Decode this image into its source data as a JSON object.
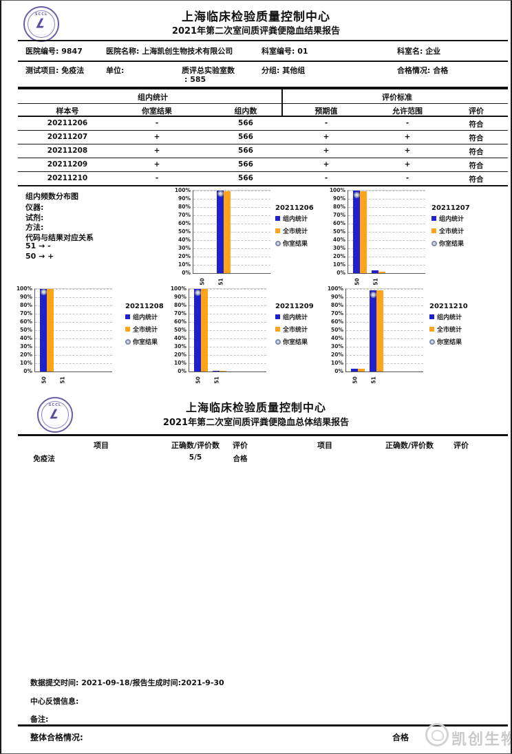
{
  "seal": {
    "text": "SCCL"
  },
  "report1": {
    "title": "上海临床检验质量控制中心",
    "subtitle": "2021年第二次室间质评粪便隐血结果报告",
    "info_row1": [
      {
        "label": "医院编号:",
        "value": "9847"
      },
      {
        "label": "医院名称:",
        "value": "上海凯创生物技术有限公司"
      },
      {
        "label": "科室编号:",
        "value": "01"
      },
      {
        "label": "科室名:",
        "value": "企业"
      }
    ],
    "info_row2": [
      {
        "label": "测试项目:",
        "value": "免疫法",
        "wrap": false
      },
      {
        "label": "单位:",
        "value": "",
        "wrap": false
      },
      {
        "label": "质评总实验室数",
        "value": ": 585",
        "wrap": true
      },
      {
        "label": "分组:",
        "value": "其他组",
        "wrap": false
      },
      {
        "label": "合格情况:",
        "value": "合格",
        "wrap": false
      }
    ],
    "result_table": {
      "group_headers": [
        "组内统计",
        "评价标准"
      ],
      "columns": [
        "样本号",
        "你室结果",
        "组内数",
        "预期值",
        "允许范围",
        "评价"
      ],
      "rows": [
        [
          "20211206",
          "-",
          "566",
          "-",
          "-",
          "符合"
        ],
        [
          "20211207",
          "+",
          "566",
          "+",
          "+",
          "符合"
        ],
        [
          "20211208",
          "+",
          "566",
          "+",
          "+",
          "符合"
        ],
        [
          "20211209",
          "+",
          "566",
          "+",
          "+",
          "符合"
        ],
        [
          "20211210",
          "-",
          "566",
          "-",
          "-",
          "符合"
        ]
      ]
    },
    "chart_notes": {
      "title": "组内频数分布图",
      "lines": [
        "仪器:",
        "试剂:",
        "方法:",
        "代码与结果对应关系",
        "51 → -",
        "50 → +"
      ]
    }
  },
  "chart_data": [
    {
      "type": "bar",
      "title": "20211206",
      "categories": [
        "50",
        "51"
      ],
      "series": [
        {
          "name": "组内统计",
          "color": "#2020CC",
          "values": [
            0,
            100
          ]
        },
        {
          "name": "全市统计",
          "color": "#FFA31A",
          "values": [
            0,
            99
          ]
        }
      ],
      "your_result": {
        "name": "你室结果",
        "category": "51",
        "value": 97
      },
      "ylim": [
        0,
        100
      ],
      "grid": true,
      "legend_position": "right",
      "yticks": [
        "0%",
        "10%",
        "20%",
        "30%",
        "40%",
        "50%",
        "60%",
        "70%",
        "80%",
        "90%",
        "100%"
      ]
    },
    {
      "type": "bar",
      "title": "20211207",
      "categories": [
        "50",
        "51"
      ],
      "series": [
        {
          "name": "组内统计",
          "color": "#2020CC",
          "values": [
            100,
            3
          ]
        },
        {
          "name": "全市统计",
          "color": "#FFA31A",
          "values": [
            99,
            2
          ]
        }
      ],
      "your_result": {
        "name": "你室结果",
        "category": "50",
        "value": 95
      },
      "ylim": [
        0,
        100
      ],
      "grid": true,
      "legend_position": "right",
      "yticks": [
        "0%",
        "10%",
        "20%",
        "30%",
        "40%",
        "50%",
        "60%",
        "70%",
        "80%",
        "90%",
        "100%"
      ]
    },
    {
      "type": "bar",
      "title": "20211208",
      "categories": [
        "50",
        "51"
      ],
      "series": [
        {
          "name": "组内统计",
          "color": "#2020CC",
          "values": [
            100,
            0
          ]
        },
        {
          "name": "全市统计",
          "color": "#FFA31A",
          "values": [
            100,
            0
          ]
        }
      ],
      "your_result": {
        "name": "你室结果",
        "category": "50",
        "value": 97
      },
      "ylim": [
        0,
        100
      ],
      "grid": true,
      "legend_position": "right",
      "yticks": [
        "0%",
        "10%",
        "20%",
        "30%",
        "40%",
        "50%",
        "60%",
        "70%",
        "80%",
        "90%",
        "100%"
      ]
    },
    {
      "type": "bar",
      "title": "20211209",
      "categories": [
        "50",
        "51"
      ],
      "series": [
        {
          "name": "组内统计",
          "color": "#2020CC",
          "values": [
            100,
            1
          ]
        },
        {
          "name": "全市统计",
          "color": "#FFA31A",
          "values": [
            100,
            1
          ]
        }
      ],
      "your_result": {
        "name": "你室结果",
        "category": "50",
        "value": 96
      },
      "ylim": [
        0,
        100
      ],
      "grid": true,
      "legend_position": "right",
      "yticks": [
        "0%",
        "10%",
        "20%",
        "30%",
        "40%",
        "50%",
        "60%",
        "70%",
        "80%",
        "90%",
        "100%"
      ]
    },
    {
      "type": "bar",
      "title": "20211210",
      "categories": [
        "50",
        "51"
      ],
      "series": [
        {
          "name": "组内统计",
          "color": "#2020CC",
          "values": [
            3,
            98
          ]
        },
        {
          "name": "全市统计",
          "color": "#FFA31A",
          "values": [
            3,
            98
          ]
        }
      ],
      "your_result": {
        "name": "你室结果",
        "category": "51",
        "value": 93
      },
      "ylim": [
        0,
        100
      ],
      "grid": true,
      "legend_position": "right",
      "yticks": [
        "0%",
        "10%",
        "20%",
        "30%",
        "40%",
        "50%",
        "60%",
        "70%",
        "80%",
        "90%",
        "100%"
      ]
    }
  ],
  "report2": {
    "title": "上海临床检验质量控制中心",
    "subtitle": "2021年第二次室间质评粪便隐血总体结果报告",
    "columns": [
      "项目",
      "正确数/评价数",
      "评价",
      "项目",
      "正确数/评价数",
      "评价"
    ],
    "rows": [
      [
        "免疫法",
        "5/5",
        "合格",
        "",
        "",
        ""
      ]
    ]
  },
  "footer": {
    "submit_line": "数据提交时间: 2021-09-18/报告生成时间:2021-9-30",
    "feedback_label": "中心反馈信息:",
    "remark_label": "备注:",
    "overall_label": "整体合格情况:",
    "overall_value": "合格"
  },
  "watermark": {
    "text": "凯创生物"
  },
  "colors": {
    "bar_blue": "#2020CC",
    "bar_orange": "#FFA31A",
    "marker_gray": "#8088AA",
    "seal_purple": "#6C5CA8",
    "watermark_gray": "#C9C9CC"
  }
}
